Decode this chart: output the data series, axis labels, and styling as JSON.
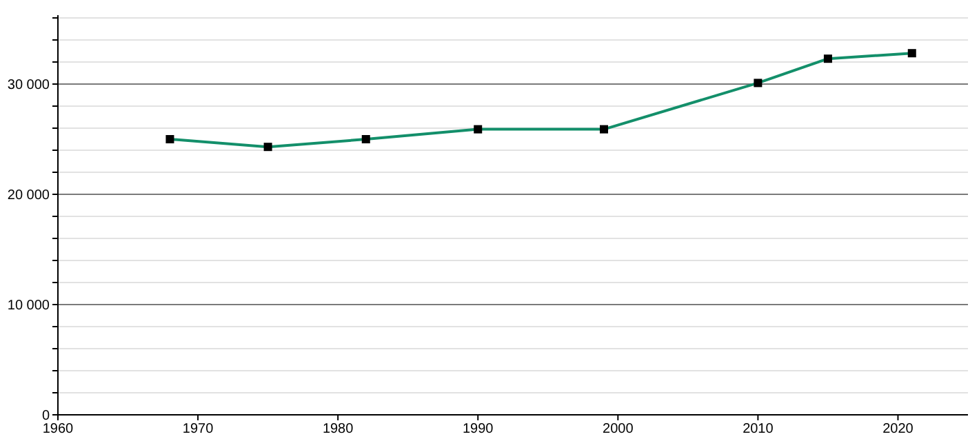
{
  "chart_data": {
    "type": "line",
    "x": [
      1968,
      1975,
      1982,
      1990,
      1999,
      2010,
      2015,
      2021
    ],
    "series": [
      {
        "color": "#138f6a",
        "values": [
          25000,
          24300,
          25000,
          25900,
          25900,
          30100,
          32300,
          32800
        ]
      }
    ],
    "xlim": [
      1960,
      2025
    ],
    "xticks": [
      1960,
      1970,
      1980,
      1990,
      2000,
      2010,
      2020
    ],
    "ylim": [
      0,
      36250
    ],
    "yticks": [
      0,
      {
        "value": 2000,
        "label": null
      },
      {
        "value": 4000,
        "label": null
      },
      {
        "value": 6000,
        "label": null
      },
      {
        "value": 8000,
        "label": null
      },
      {
        "value": 10000,
        "label": "10 000"
      },
      {
        "value": 12000,
        "label": null
      },
      {
        "value": 14000,
        "label": null
      },
      {
        "value": 16000,
        "label": null
      },
      {
        "value": 18000,
        "label": null
      },
      {
        "value": 20000,
        "label": "20 000"
      },
      {
        "value": 22000,
        "label": null
      },
      {
        "value": 24000,
        "label": null
      },
      {
        "value": 26000,
        "label": null
      },
      {
        "value": 28000,
        "label": null
      },
      {
        "value": 30000,
        "label": "30 000"
      },
      {
        "value": 32000,
        "label": null
      },
      {
        "value": 34000,
        "label": null
      },
      {
        "value": 36000,
        "label": null
      }
    ],
    "grid": "y",
    "marker": "square",
    "line_style": "solid"
  }
}
